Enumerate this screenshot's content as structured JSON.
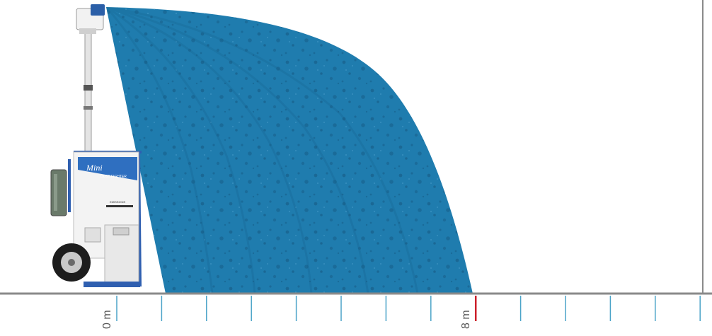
{
  "machine": {
    "brand": "Mini",
    "model_line": "DUST FIGHTER",
    "logo_text": "EMISSIONS"
  },
  "spray": {
    "color": "#1f7cae",
    "color_dark": "#15608c",
    "reach_m": 8
  },
  "axis": {
    "line_color": "#8a8a8a",
    "tick_color": "#4aa3c8",
    "marker_color": "#cc1f2a",
    "start_label": "0 m",
    "end_label": "8 m"
  }
}
